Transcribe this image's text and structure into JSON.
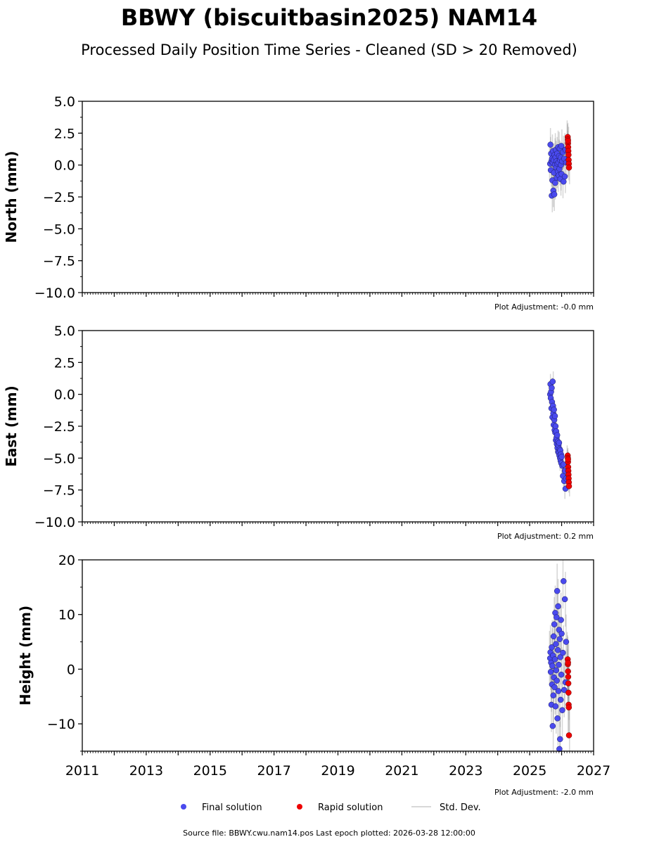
{
  "chart_data": {
    "type": "scatter",
    "title": "BBWY (biscuitbasin2025) NAM14",
    "subtitle": "Processed Daily Position Time Series - Cleaned (SD > 20 Removed)",
    "xlim": [
      2011,
      2027
    ],
    "xticks": [
      "2011",
      "2013",
      "2015",
      "2017",
      "2019",
      "2021",
      "2023",
      "2025",
      "2027"
    ],
    "final_dates": [
      2025.64,
      2025.65,
      2025.66,
      2025.67,
      2025.68,
      2025.69,
      2025.7,
      2025.71,
      2025.72,
      2025.73,
      2025.74,
      2025.75,
      2025.76,
      2025.77,
      2025.78,
      2025.79,
      2025.8,
      2025.81,
      2025.82,
      2025.83,
      2025.84,
      2025.85,
      2025.86,
      2025.87,
      2025.88,
      2025.89,
      2025.9,
      2025.91,
      2025.92,
      2025.93,
      2025.94,
      2025.95,
      2025.96,
      2025.97,
      2025.98,
      2025.99,
      2026.0,
      2026.02,
      2026.04,
      2026.06,
      2026.08,
      2026.1,
      2026.12,
      2026.14
    ],
    "rapid_dates": [
      2026.19,
      2026.195,
      2026.2,
      2026.205,
      2026.21,
      2026.215,
      2026.22,
      2026.225,
      2026.23,
      2026.2
    ],
    "panels": [
      {
        "ylabel": "North (mm)",
        "ylim": [
          -10,
          5
        ],
        "yticks": [
          "5.0",
          "2.5",
          "0.0",
          "−2.5",
          "−5.0",
          "−7.5",
          "−10.0"
        ],
        "ytick_values": [
          5,
          2.5,
          0,
          -2.5,
          -5,
          -7.5,
          -10
        ],
        "ytick_minor": 1.25,
        "sd": 1.3,
        "adjustment": "Plot Adjustment: -0.0 mm",
        "final": [
          0.1,
          1.6,
          -0.4,
          0.9,
          0.3,
          -2.4,
          0.5,
          -1.2,
          0.2,
          1.1,
          -2.0,
          0.4,
          -0.6,
          -2.3,
          0.8,
          0.0,
          -1.4,
          0.6,
          1.2,
          -0.2,
          0.3,
          -1.0,
          0.9,
          0.1,
          -0.5,
          1.4,
          0.2,
          -0.8,
          0.7,
          -0.3,
          1.3,
          0.4,
          -1.1,
          0.6,
          0.0,
          1.5,
          -0.7,
          0.3,
          1.0,
          -1.3,
          0.5,
          -0.9,
          1.2,
          0.2
        ],
        "rapid": [
          2.2,
          2.0,
          1.7,
          1.4,
          1.1,
          0.8,
          0.4,
          0.1,
          -0.2,
          1.9
        ]
      },
      {
        "ylabel": "East (mm)",
        "ylim": [
          -10,
          5
        ],
        "yticks": [
          "5.0",
          "2.5",
          "0.0",
          "−2.5",
          "−5.0",
          "−7.5",
          "−10.0"
        ],
        "ytick_values": [
          5,
          2.5,
          0,
          -2.5,
          -5,
          -7.5,
          -10
        ],
        "ytick_minor": 1.25,
        "sd": 0.8,
        "adjustment": "Plot Adjustment: 0.2 mm",
        "final": [
          0.0,
          0.8,
          -0.3,
          0.2,
          -1.1,
          0.5,
          -0.6,
          -1.8,
          1.0,
          -0.9,
          -1.5,
          -2.4,
          -1.2,
          -2.0,
          -2.8,
          -1.7,
          -3.0,
          -2.5,
          -3.6,
          -2.9,
          -3.4,
          -3.9,
          -3.2,
          -4.2,
          -3.7,
          -4.5,
          -4.0,
          -4.6,
          -3.8,
          -4.8,
          -4.3,
          -5.0,
          -4.4,
          -5.2,
          -4.7,
          -5.4,
          -4.9,
          -5.6,
          -6.4,
          -5.5,
          -6.8,
          -6.0,
          -7.4,
          -6.6
        ],
        "rapid": [
          -4.8,
          -5.0,
          -5.3,
          -5.7,
          -6.0,
          -6.3,
          -6.6,
          -6.9,
          -7.2,
          -5.1
        ]
      },
      {
        "ylabel": "Height (mm)",
        "ylim": [
          -15,
          20
        ],
        "yticks": [
          "20",
          "10",
          "0",
          "−10"
        ],
        "ytick_values": [
          20,
          10,
          0,
          -10
        ],
        "ytick_minor": 5,
        "sd": 5,
        "adjustment": "Plot Adjustment: -2.0 mm",
        "final": [
          2.0,
          3.1,
          -0.5,
          1.2,
          -6.5,
          4.0,
          -2.8,
          0.6,
          -10.4,
          2.5,
          -4.8,
          6.0,
          -1.5,
          8.2,
          -3.3,
          1.8,
          10.3,
          -6.8,
          4.6,
          -0.2,
          9.5,
          -2.1,
          14.3,
          -9.0,
          3.5,
          11.5,
          -4.0,
          0.8,
          7.2,
          -14.6,
          5.5,
          -12.8,
          2.2,
          -5.6,
          9.0,
          -1.0,
          6.5,
          -7.5,
          3.0,
          16.1,
          -3.8,
          12.8,
          -2.4,
          5.0
        ],
        "rapid": [
          1.8,
          0.9,
          -0.4,
          -1.4,
          -2.6,
          -4.3,
          -6.5,
          -7.0,
          -12.1,
          1.2
        ]
      }
    ],
    "legend": {
      "placement": "bottom-center",
      "entries": [
        "Final solution",
        "Rapid solution",
        "Std. Dev."
      ]
    },
    "colors": {
      "final": "#4a4aee",
      "rapid": "#ee0000",
      "sd": "#b0b0b0"
    },
    "source": "Source file: BBWY.cwu.nam14.pos  Last epoch plotted: 2026-03-28 12:00:00"
  }
}
